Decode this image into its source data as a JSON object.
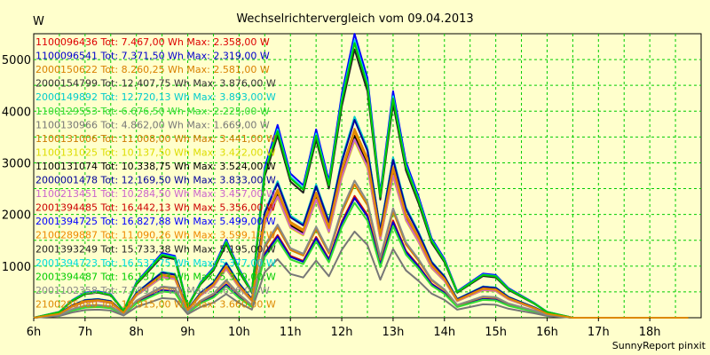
{
  "chart_data": {
    "type": "line",
    "title": "Wechselrichtervergleich vom 09.04.2013",
    "ylabel": "W",
    "footer": "SunnyReport pinxit",
    "xlim": [
      6,
      19
    ],
    "ylim": [
      0,
      5500
    ],
    "grid": true,
    "legend_position": "top-left",
    "x_ticks": [
      {
        "value": 6,
        "label": "6h"
      },
      {
        "value": 7,
        "label": "7h"
      },
      {
        "value": 8,
        "label": "8h"
      },
      {
        "value": 9,
        "label": "9h"
      },
      {
        "value": 10,
        "label": "10h"
      },
      {
        "value": 11,
        "label": "11h"
      },
      {
        "value": 12,
        "label": "12h"
      },
      {
        "value": 13,
        "label": "13h"
      },
      {
        "value": 14,
        "label": "14h"
      },
      {
        "value": 15,
        "label": "15h"
      },
      {
        "value": 16,
        "label": "16h"
      },
      {
        "value": 17,
        "label": "17h"
      },
      {
        "value": 18,
        "label": "18h"
      }
    ],
    "y_ticks": [
      {
        "value": 1000,
        "label": "1000"
      },
      {
        "value": 2000,
        "label": "2000"
      },
      {
        "value": 3000,
        "label": "3000"
      },
      {
        "value": 4000,
        "label": "4000"
      },
      {
        "value": 5000,
        "label": "5000"
      }
    ],
    "x": [
      6.0,
      6.5,
      6.75,
      7.0,
      7.25,
      7.5,
      7.75,
      8.0,
      8.25,
      8.5,
      8.75,
      9.0,
      9.25,
      9.5,
      9.75,
      10.0,
      10.25,
      10.5,
      10.75,
      11.0,
      11.25,
      11.5,
      11.75,
      12.0,
      12.25,
      12.5,
      12.75,
      13.0,
      13.25,
      13.5,
      13.75,
      14.0,
      14.25,
      14.5,
      14.75,
      15.0,
      15.25,
      15.5,
      15.75,
      16.0,
      16.25,
      16.5,
      16.75,
      17.0,
      17.5,
      18.0,
      18.75
    ],
    "profile": [
      0,
      0.02,
      0.06,
      0.085,
      0.09,
      0.08,
      0.025,
      0.12,
      0.17,
      0.22,
      0.21,
      0.04,
      0.12,
      0.17,
      0.265,
      0.165,
      0.09,
      0.51,
      0.655,
      0.49,
      0.45,
      0.64,
      0.465,
      0.76,
      0.965,
      0.815,
      0.425,
      0.77,
      0.53,
      0.41,
      0.27,
      0.2,
      0.09,
      0.12,
      0.15,
      0.145,
      0.1,
      0.075,
      0.05,
      0.02,
      0.01,
      0,
      0,
      0,
      0,
      0,
      0
    ],
    "series": [
      {
        "label": "1100096436 Tot: 7.467,00 Wh Max: 2.358,00 W",
        "name": "1100096436",
        "total_wh": 7467.0,
        "max_w": 2358.0,
        "color": "#DD0000"
      },
      {
        "label": "1100096541 Tot: 7.371,50 Wh Max: 2.319,00 W",
        "name": "1100096541",
        "total_wh": 7371.5,
        "max_w": 2319.0,
        "color": "#0000CC"
      },
      {
        "label": "2000150622 Tot: 8.260,25 Wh Max: 2.581,00 W",
        "name": "2000150622",
        "total_wh": 8260.25,
        "max_w": 2581.0,
        "color": "#D98000"
      },
      {
        "label": "2000154799 Tot: 12.407,75 Wh Max: 3.876,00 W",
        "name": "2000154799",
        "total_wh": 12407.75,
        "max_w": 3876.0,
        "color": "#333333"
      },
      {
        "label": "2000149892 Tot: 12.720,13 Wh Max: 3.893,00 W",
        "name": "2000149892",
        "total_wh": 12720.13,
        "max_w": 3893.0,
        "color": "#00CCCC"
      },
      {
        "label": "1100129553 Tot: 6.676,50 Wh Max: 2.225,00 W",
        "name": "1100129553",
        "total_wh": 6676.5,
        "max_w": 2225.0,
        "color": "#33DD33"
      },
      {
        "label": "1100130966 Tot: 4.862,00 Wh Max: 1.669,00 W",
        "name": "1100130966",
        "total_wh": 4862.0,
        "max_w": 1669.0,
        "color": "#777777"
      },
      {
        "label": "1100131006 Tot: 11.008,00 Wh Max: 3.441,00 W",
        "name": "1100131006",
        "total_wh": 11008.0,
        "max_w": 3441.0,
        "color": "#CC7A00"
      },
      {
        "label": "1100131025 Tot: 10.137,50 Wh Max: 3.422,00 W",
        "name": "1100131025",
        "total_wh": 10137.5,
        "max_w": 3422.0,
        "color": "#DDDD00"
      },
      {
        "label": "1100131074 Tot: 10.338,75 Wh Max: 3.524,00 W",
        "name": "1100131074",
        "total_wh": 10338.75,
        "max_w": 3524.0,
        "color": "#000000"
      },
      {
        "label": "2000001478 Tot: 12.169,50 Wh Max: 3.833,00 W",
        "name": "2000001478",
        "total_wh": 12169.5,
        "max_w": 3833.0,
        "color": "#000099"
      },
      {
        "label": "1100213451 Tot: 10.284,50 Wh Max: 3.457,00 W",
        "name": "1100213451",
        "total_wh": 10284.5,
        "max_w": 3457.0,
        "color": "#CC66CC"
      },
      {
        "label": "2001394485 Tot: 16.442,13 Wh Max: 5.356,00 W",
        "name": "2001394485",
        "total_wh": 16442.13,
        "max_w": 5356.0,
        "color": "#CC0000"
      },
      {
        "label": "2001394725 Tot: 16.827,88 Wh Max: 5.499,00 W",
        "name": "2001394725",
        "total_wh": 16827.88,
        "max_w": 5499.0,
        "color": "#0000FF"
      },
      {
        "label": "2100289887 Tot: 11.090,26 Wh Max: 3.599,13 W",
        "name": "2100289887",
        "total_wh": 11090.26,
        "max_w": 3599.13,
        "color": "#EE8800"
      },
      {
        "label": "2001393249 Tot: 15.733,38 Wh Max: 5.195,00 W",
        "name": "2001393249",
        "total_wh": 15733.38,
        "max_w": 5195.0,
        "color": "#222222"
      },
      {
        "label": "2001394723 Tot: 16.537,75 Wh Max: 5.377,00 W",
        "name": "2001394723",
        "total_wh": 16537.75,
        "max_w": 5377.0,
        "color": "#00DDDD"
      },
      {
        "label": "2001394487 Tot: 16.137,13 Wh Max: 5.319,00 W",
        "name": "2001394487",
        "total_wh": 16137.13,
        "max_w": 5319.0,
        "color": "#00CC00"
      },
      {
        "label": "2001102358 Tot: 7.789,00 Wh Max: 2.656,00 W",
        "name": "2001102358",
        "total_wh": 7789.0,
        "max_w": 2656.0,
        "color": "#888888"
      },
      {
        "label": "2100285689 Tot: 10.915,00 Wh Max: 3.660,00 W",
        "name": "2100285689",
        "total_wh": 10915.0,
        "max_w": 3660.0,
        "color": "#DD8800"
      }
    ]
  }
}
